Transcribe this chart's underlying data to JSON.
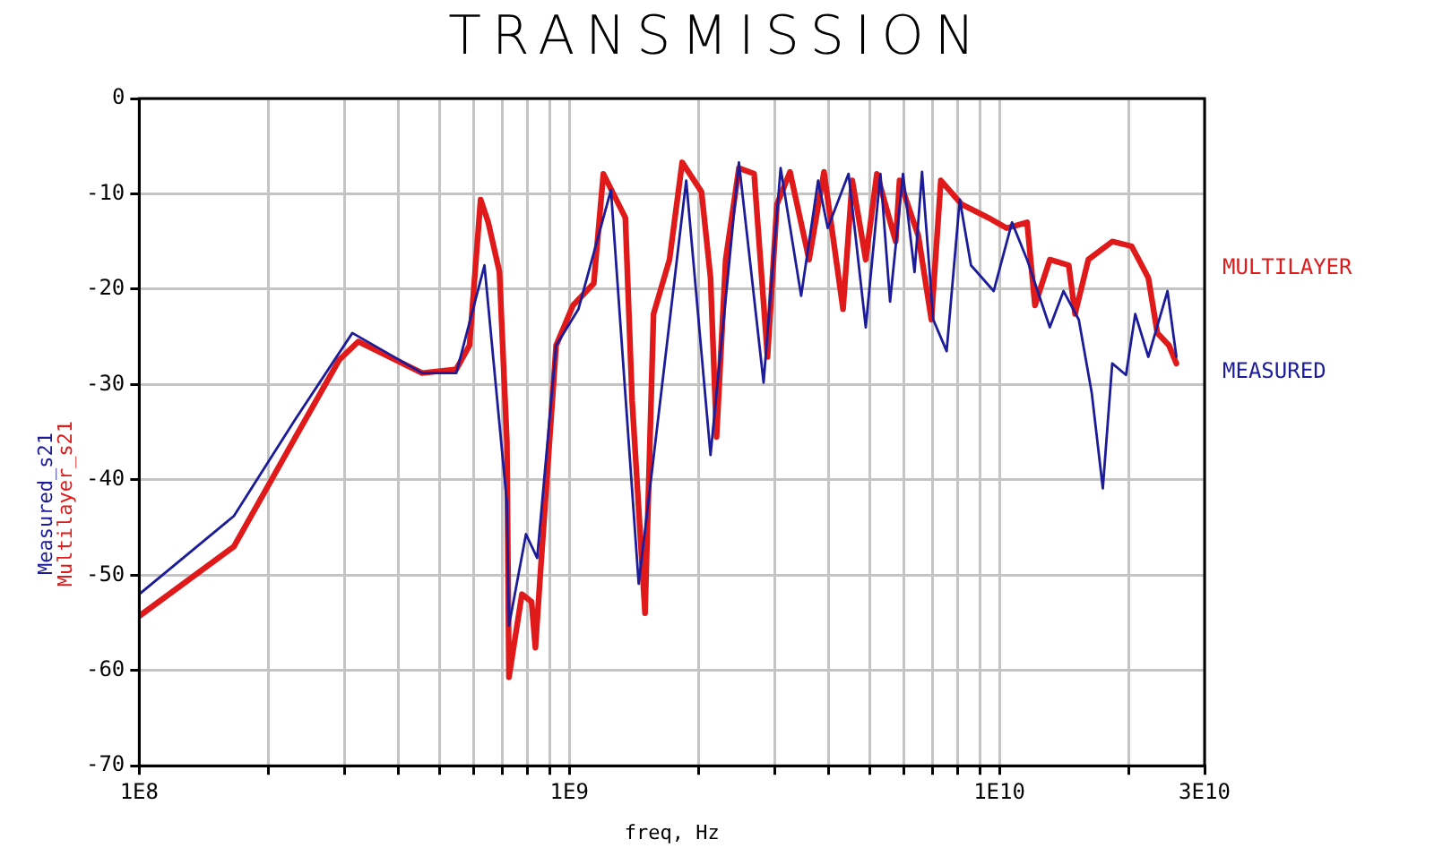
{
  "chart_data": {
    "type": "line",
    "title": "TRANSMISSION",
    "xlabel": "freq, Hz",
    "ylabel": "Measured_s21\nMultilayer_s21",
    "log": "x",
    "grid": true,
    "marker": "none",
    "line_style": "solid",
    "xlim": [
      100000000.0,
      30000000000.0
    ],
    "ylim": [
      -70,
      0
    ],
    "xticks": [
      {
        "value": 100000000.0,
        "label": "1E8"
      },
      {
        "value": 200000000.0,
        "label": null
      },
      {
        "value": 300000000.0,
        "label": null
      },
      {
        "value": 400000000.0,
        "label": null
      },
      {
        "value": 500000000.0,
        "label": null
      },
      {
        "value": 600000000.0,
        "label": null
      },
      {
        "value": 700000000.0,
        "label": null
      },
      {
        "value": 800000000.0,
        "label": null
      },
      {
        "value": 900000000.0,
        "label": null
      },
      {
        "value": 1000000000.0,
        "label": "1E9"
      },
      {
        "value": 2000000000.0,
        "label": null
      },
      {
        "value": 3000000000.0,
        "label": null
      },
      {
        "value": 4000000000.0,
        "label": null
      },
      {
        "value": 5000000000.0,
        "label": null
      },
      {
        "value": 6000000000.0,
        "label": null
      },
      {
        "value": 7000000000.0,
        "label": null
      },
      {
        "value": 8000000000.0,
        "label": null
      },
      {
        "value": 9000000000.0,
        "label": null
      },
      {
        "value": 10000000000.0,
        "label": "1E10"
      },
      {
        "value": 20000000000.0,
        "label": null
      },
      {
        "value": 30000000000.0,
        "label": "3E10"
      }
    ],
    "yticks": [
      -70,
      -60,
      -50,
      -40,
      -30,
      -20,
      -10,
      0
    ],
    "series": [
      {
        "name": "MULTILAYER",
        "color": "#e01a1a",
        "x": [
          100000000.0,
          166000000.0,
          231000000.0,
          292000000.0,
          323000000.0,
          455000000.0,
          546000000.0,
          586000000.0,
          622000000.0,
          648000000.0,
          688000000.0,
          716000000.0,
          724000000.0,
          776000000.0,
          817000000.0,
          834000000.0,
          859000000.0,
          932000000.0,
          1020000000.0,
          1140000000.0,
          1200000000.0,
          1350000000.0,
          1400000000.0,
          1500000000.0,
          1570000000.0,
          1710000000.0,
          1830000000.0,
          2030000000.0,
          2130000000.0,
          2200000000.0,
          2310000000.0,
          2480000000.0,
          2690000000.0,
          2890000000.0,
          3040000000.0,
          3260000000.0,
          3610000000.0,
          3910000000.0,
          4330000000.0,
          4550000000.0,
          4890000000.0,
          5190000000.0,
          5740000000.0,
          5860000000.0,
          6480000000.0,
          6950000000.0,
          7310000000.0,
          8170000000.0,
          9420000000.0,
          10400000000.0,
          11600000000.0,
          12100000000.0,
          13100000000.0,
          14500000000.0,
          15000000000.0,
          16100000000.0,
          18300000000.0,
          20300000000.0,
          22200000000.0,
          23300000000.0,
          24800000000.0,
          25800000000.0
        ],
        "values": [
          -54.3,
          -47,
          -35.5,
          -27.4,
          -25.5,
          -28.8,
          -28.4,
          -25.9,
          -10.6,
          -13,
          -18.2,
          -36,
          -60.7,
          -52,
          -52.8,
          -57.6,
          -49,
          -25.9,
          -21.7,
          -19.4,
          -7.9,
          -12.5,
          -31.7,
          -54,
          -22.6,
          -16.9,
          -6.7,
          -9.8,
          -18.8,
          -35.5,
          -16.9,
          -7.3,
          -7.9,
          -27.1,
          -11.1,
          -7.7,
          -16.9,
          -7.7,
          -22.1,
          -8.6,
          -16.9,
          -7.9,
          -15,
          -8.6,
          -14.4,
          -23.2,
          -8.6,
          -11.1,
          -12.5,
          -13.6,
          -13,
          -21.7,
          -16.9,
          -17.5,
          -22.6,
          -16.9,
          -15,
          -15.5,
          -18.8,
          -24.6,
          -25.9,
          -27.8
        ]
      },
      {
        "name": "MEASURED",
        "color": "#1c1c9a",
        "x": [
          100000000.0,
          166000000.0,
          231000000.0,
          313000000.0,
          455000000.0,
          546000000.0,
          635000000.0,
          716000000.0,
          724000000.0,
          793000000.0,
          842000000.0,
          932000000.0,
          1050000000.0,
          1250000000.0,
          1450000000.0,
          1870000000.0,
          2130000000.0,
          2480000000.0,
          2830000000.0,
          3100000000.0,
          3460000000.0,
          3790000000.0,
          3990000000.0,
          4460000000.0,
          4890000000.0,
          5290000000.0,
          5570000000.0,
          5970000000.0,
          6350000000.0,
          6610000000.0,
          7020000000.0,
          7540000000.0,
          8090000000.0,
          8590000000.0,
          9700000000.0,
          10700000000.0,
          11600000000.0,
          13100000000.0,
          14100000000.0,
          15300000000.0,
          16400000000.0,
          17400000000.0,
          18300000000.0,
          19700000000.0,
          20700000000.0,
          22200000000.0,
          24600000000.0,
          25800000000.0
        ],
        "values": [
          -52,
          -43.8,
          -33.6,
          -24.6,
          -28.8,
          -28.8,
          -17.5,
          -42.4,
          -55.3,
          -45.7,
          -48.2,
          -25.9,
          -22.1,
          -9.6,
          -50.9,
          -8.6,
          -37.4,
          -6.7,
          -29.8,
          -7.3,
          -20.7,
          -8.6,
          -13.6,
          -7.9,
          -24,
          -7.9,
          -21.3,
          -7.9,
          -18.2,
          -7.7,
          -23.2,
          -26.5,
          -10.6,
          -17.5,
          -20.2,
          -13,
          -16.9,
          -24,
          -20.2,
          -23.2,
          -30.9,
          -40.9,
          -27.8,
          -29,
          -22.6,
          -27.1,
          -20.2,
          -27.1
        ]
      }
    ]
  }
}
